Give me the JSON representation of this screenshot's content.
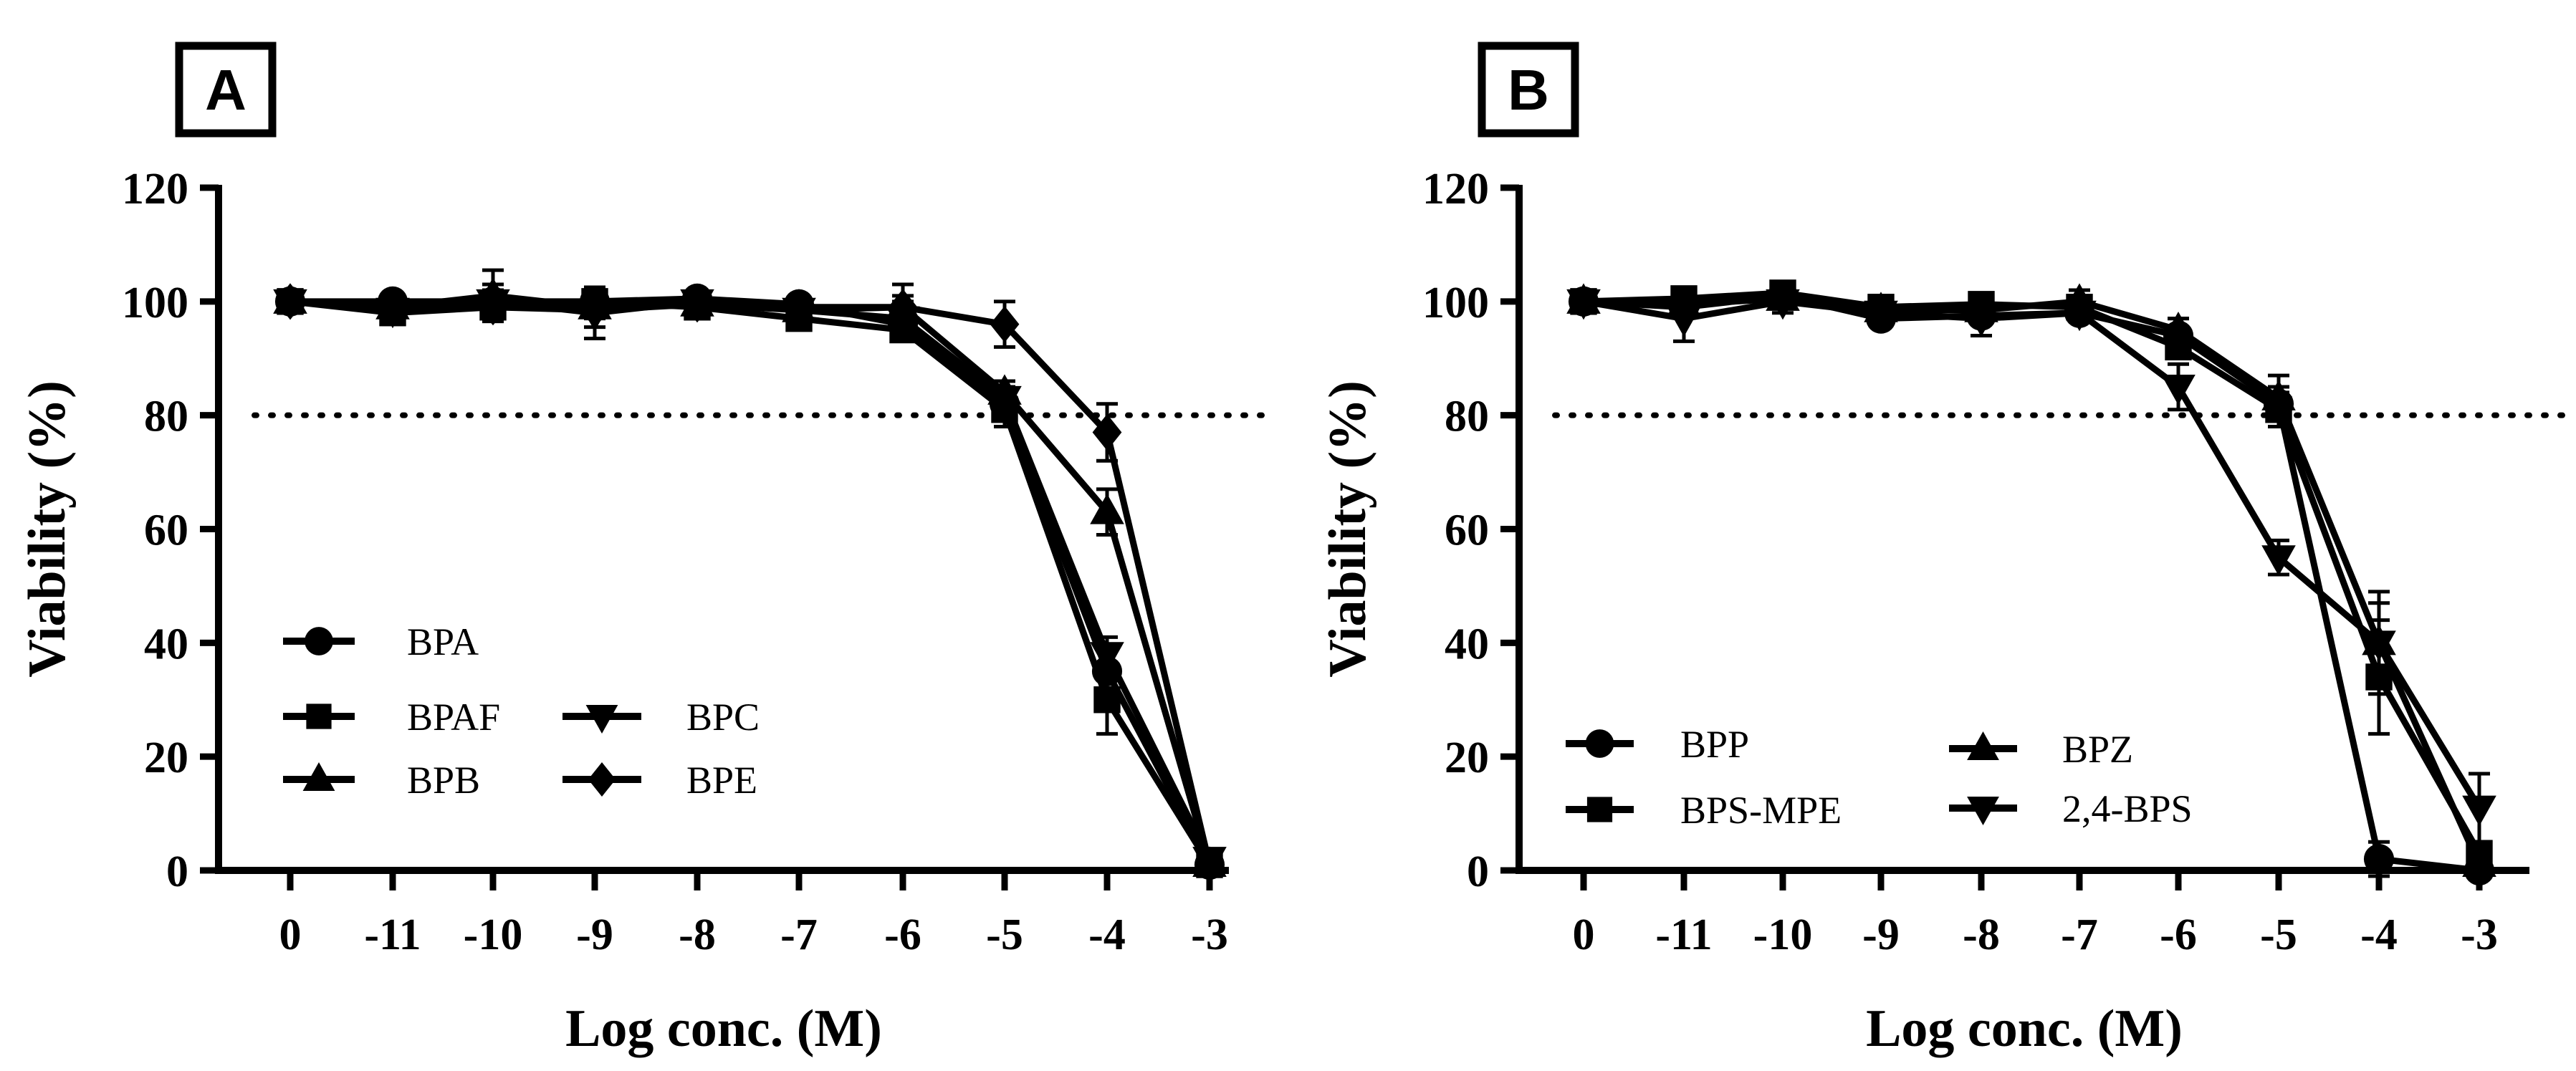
{
  "chart_data": [
    {
      "type": "line",
      "panel": "A",
      "xlabel": "Log conc. (M)",
      "ylabel": "Viability (%)",
      "ylim": [
        0,
        120
      ],
      "yticks": [
        "0",
        "20",
        "40",
        "60",
        "80",
        "100",
        "120"
      ],
      "categories": [
        "0",
        "-11",
        "-10",
        "-9",
        "-8",
        "-7",
        "-6",
        "-5",
        "-4",
        "-3"
      ],
      "reference_line": 80,
      "series": [
        {
          "name": "BPA",
          "marker": "circle",
          "values": [
            100,
            100,
            100,
            100,
            100.5,
            99.5,
            96,
            82,
            35,
            1
          ],
          "errors": [
            0.5,
            1.5,
            3,
            1.5,
            1,
            1,
            2,
            3,
            4,
            1
          ]
        },
        {
          "name": "BPAF",
          "marker": "square",
          "values": [
            100,
            98,
            99,
            100,
            99,
            97,
            95,
            81,
            30,
            1
          ],
          "errors": [
            0.5,
            2,
            2,
            2,
            1.5,
            1.5,
            2,
            3,
            6,
            1
          ]
        },
        {
          "name": "BPB",
          "marker": "triangle",
          "values": [
            100,
            99,
            101,
            99,
            99.5,
            98.5,
            99,
            84,
            63,
            1
          ],
          "errors": [
            0.5,
            1.5,
            4.5,
            2,
            1,
            1,
            4,
            2,
            4,
            1
          ]
        },
        {
          "name": "BPC",
          "marker": "tri-down",
          "values": [
            100,
            98.5,
            100,
            98,
            100,
            98.5,
            97,
            83,
            38,
            2
          ],
          "errors": [
            0.5,
            1.5,
            2,
            4.5,
            1,
            1,
            3,
            3,
            3,
            1
          ]
        },
        {
          "name": "BPE",
          "marker": "diamond",
          "values": [
            100,
            99,
            99,
            98.5,
            99.5,
            99,
            99,
            96,
            77,
            1
          ],
          "errors": [
            0.5,
            1.5,
            2,
            3,
            1,
            1,
            2,
            4,
            5,
            1
          ]
        }
      ]
    },
    {
      "type": "line",
      "panel": "B",
      "xlabel": "Log conc. (M)",
      "ylabel": "Viability (%)",
      "ylim": [
        0,
        120
      ],
      "yticks": [
        "0",
        "20",
        "40",
        "60",
        "80",
        "100",
        "120"
      ],
      "categories": [
        "0",
        "-11",
        "-10",
        "-9",
        "-8",
        "-7",
        "-6",
        "-5",
        "-4",
        "-3"
      ],
      "reference_line": 80,
      "series": [
        {
          "name": "BPP",
          "marker": "circle",
          "values": [
            100,
            99,
            101,
            97,
            97.5,
            98,
            94,
            82,
            2,
            0
          ],
          "errors": [
            0.5,
            1.5,
            2,
            1,
            1.5,
            1,
            3,
            3,
            3,
            0.5
          ]
        },
        {
          "name": "BPS-MPE",
          "marker": "square",
          "values": [
            100,
            100.5,
            101.5,
            99,
            99.5,
            99,
            92,
            81,
            34,
            3
          ],
          "errors": [
            0.5,
            1.5,
            1.5,
            1.5,
            1,
            1,
            2,
            3,
            10,
            1
          ]
        },
        {
          "name": "BPZ",
          "marker": "triangle",
          "values": [
            100,
            99.5,
            100.5,
            98.5,
            98.5,
            100,
            95,
            83,
            40,
            1
          ],
          "errors": [
            0.5,
            1.5,
            1.5,
            1.5,
            1,
            2,
            2,
            4,
            9,
            1
          ]
        },
        {
          "name": "2,4-BPS",
          "marker": "tri-down",
          "values": [
            100,
            97,
            100,
            98,
            97,
            98,
            85,
            55,
            40,
            11
          ],
          "errors": [
            0.5,
            4,
            2,
            1.5,
            3,
            1.5,
            4,
            3,
            7,
            6
          ]
        }
      ]
    }
  ]
}
